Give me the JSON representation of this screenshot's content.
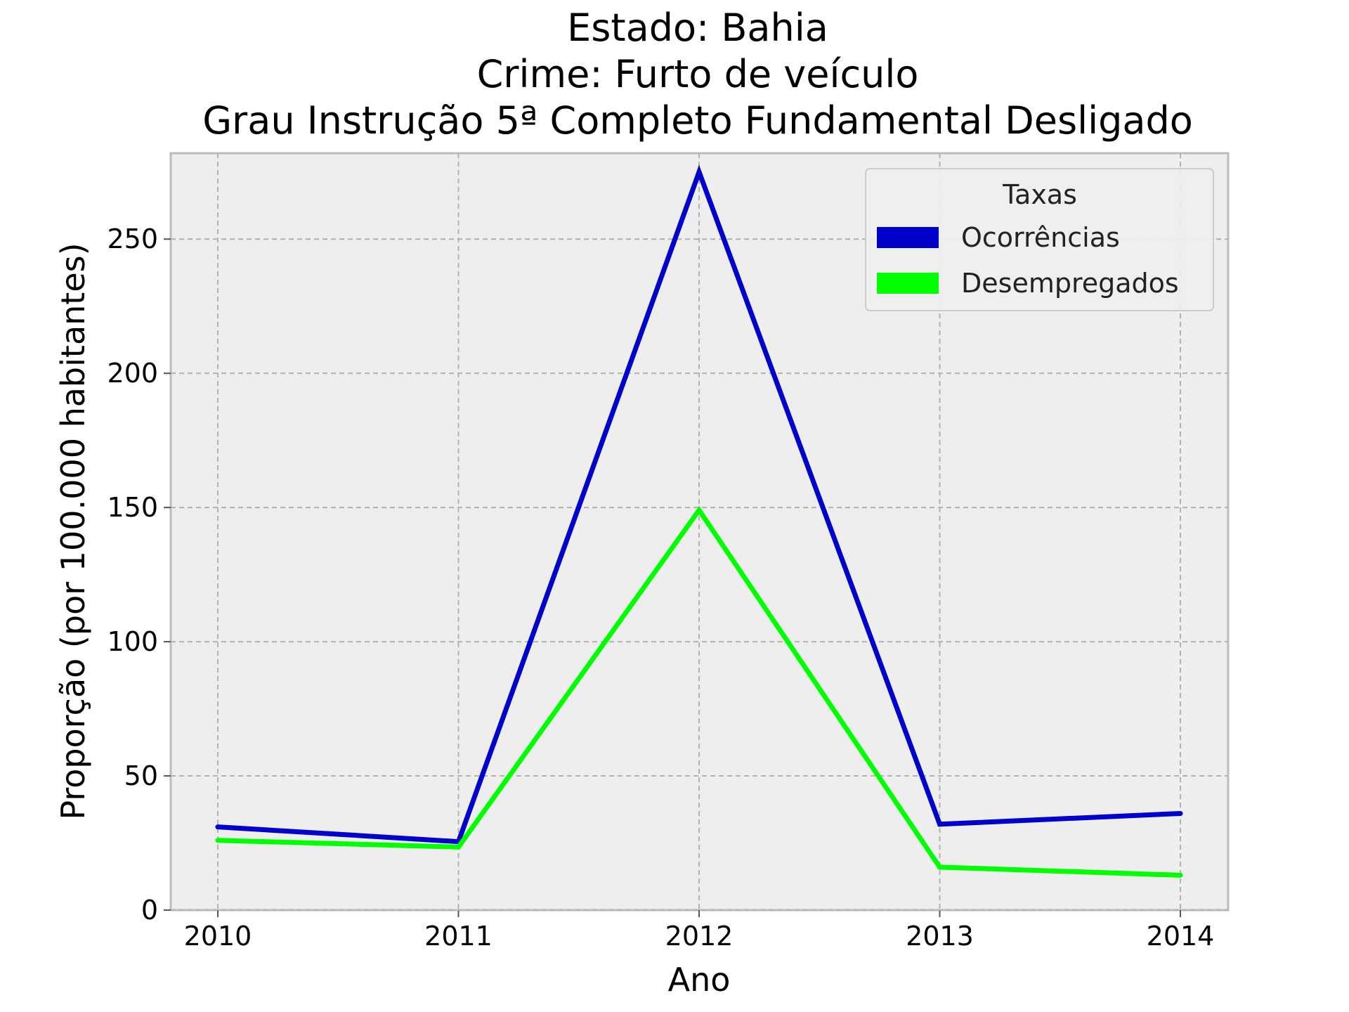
{
  "chart_data": {
    "type": "line",
    "title_lines": [
      "Estado: Bahia",
      "Crime: Furto de veículo",
      "Grau Instrução  5ª Completo Fundamental   Desligado"
    ],
    "xlabel": "Ano",
    "ylabel": "Proporção (por 100.000 habitantes)",
    "x": [
      "2010",
      "2011",
      "2012",
      "2013",
      "2014"
    ],
    "x_ticks": [
      "2010",
      "2011",
      "2012",
      "2013",
      "2014"
    ],
    "y_ticks": [
      "0",
      "50",
      "100",
      "150",
      "200",
      "250"
    ],
    "ylim": [
      0,
      282
    ],
    "grid": true,
    "legend": {
      "title": "Taxas",
      "placement": "top-right"
    },
    "series": [
      {
        "name": "Ocorrências",
        "color": "#0000cc",
        "values": [
          31,
          25.5,
          275,
          32,
          36
        ]
      },
      {
        "name": "Desempregados",
        "color": "#00ff00",
        "values": [
          26,
          23.5,
          149,
          16,
          13
        ]
      }
    ]
  }
}
